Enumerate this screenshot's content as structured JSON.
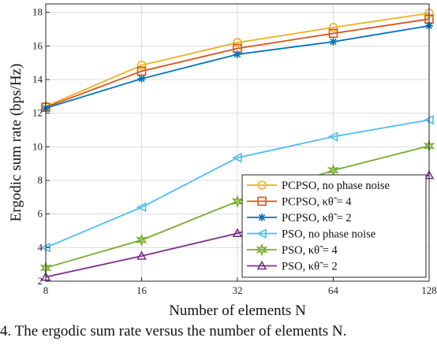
{
  "chart_data": {
    "type": "line",
    "x": [
      8,
      16,
      32,
      64,
      128
    ],
    "xlabel": "Number of elements N",
    "ylabel": "Ergodic sum rate (bps/Hz)",
    "xticks": [
      "8",
      "16",
      "32",
      "64",
      "128"
    ],
    "yticks": [
      "2",
      "4",
      "6",
      "8",
      "10",
      "12",
      "14",
      "16",
      "18"
    ],
    "ylim": [
      2,
      18.5
    ],
    "xscale": "log2",
    "grid": true,
    "legend_position": "lower-right",
    "series": [
      {
        "name": "PCPSO, no phase noise",
        "marker": "circle",
        "color": "#EDB120",
        "values": [
          12.4,
          14.85,
          16.2,
          17.1,
          17.95
        ]
      },
      {
        "name": "PCPSO, κθ̃ = 4",
        "marker": "square",
        "color": "#D95319",
        "values": [
          12.35,
          14.5,
          15.85,
          16.75,
          17.6
        ]
      },
      {
        "name": "PCPSO, κθ̃ = 2",
        "marker": "asterisk",
        "color": "#0072BD",
        "values": [
          12.3,
          14.05,
          15.5,
          16.25,
          17.2
        ]
      },
      {
        "name": "PSO, no phase noise",
        "marker": "triangle-left",
        "color": "#4DBEEE",
        "values": [
          4.0,
          6.4,
          9.35,
          10.6,
          11.6
        ]
      },
      {
        "name": "PSO, κθ̃ = 4",
        "marker": "hexagram",
        "color": "#77AC30",
        "values": [
          2.8,
          4.45,
          6.75,
          8.6,
          10.05
        ]
      },
      {
        "name": "PSO, κθ̃ = 2",
        "marker": "triangle-up",
        "color": "#7E2F8E",
        "values": [
          2.25,
          3.5,
          4.85,
          6.6,
          8.3
        ]
      }
    ]
  },
  "caption": "4.   The ergodic sum rate versus the number of elements N."
}
